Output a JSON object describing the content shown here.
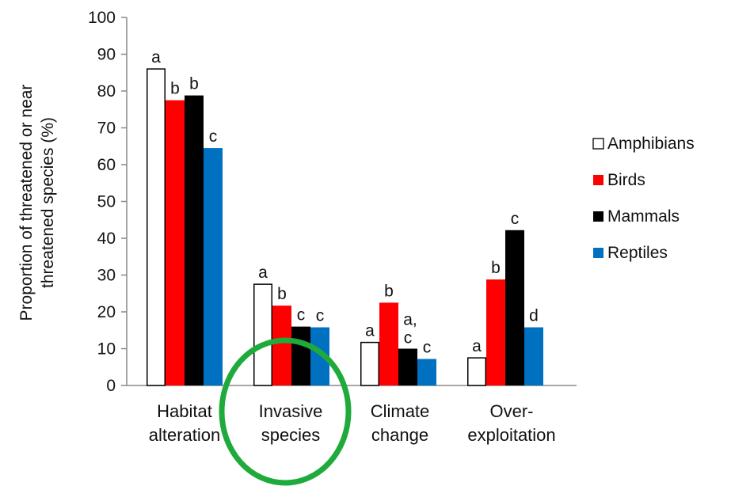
{
  "chart_data": {
    "type": "bar",
    "ylabel_lines": [
      "Proportion of threatened or near",
      "threatened species (%)"
    ],
    "xlabel": "",
    "ylim": [
      0,
      100
    ],
    "y_ticks": [
      "0",
      "10",
      "20",
      "30",
      "40",
      "50",
      "60",
      "70",
      "80",
      "90",
      "100"
    ],
    "categories": [
      {
        "lines": [
          "Habitat",
          "alteration"
        ]
      },
      {
        "lines": [
          "Invasive",
          "species"
        ]
      },
      {
        "lines": [
          "Climate",
          "change"
        ]
      },
      {
        "lines": [
          "Over-",
          "exploitation"
        ]
      }
    ],
    "series": [
      {
        "name": "Amphibians",
        "color": "#ffffff",
        "stroke": "#000000",
        "values": [
          86,
          27.5,
          11.7,
          7.5
        ],
        "labels": [
          "a",
          "a",
          "a",
          "a"
        ]
      },
      {
        "name": "Birds",
        "color": "#ff0000",
        "stroke": "#ff0000",
        "values": [
          77.5,
          21.7,
          22.5,
          28.8
        ],
        "labels": [
          "b",
          "b",
          "b",
          "b"
        ]
      },
      {
        "name": "Mammals",
        "color": "#000000",
        "stroke": "#000000",
        "values": [
          78.8,
          16,
          10,
          42.2
        ],
        "labels": [
          "b",
          "c",
          "a,\nc",
          "c"
        ]
      },
      {
        "name": "Reptiles",
        "color": "#0070c0",
        "stroke": "#0070c0",
        "values": [
          64.5,
          15.8,
          7.2,
          15.8
        ],
        "labels": [
          "c",
          "c",
          "c",
          "d"
        ]
      }
    ],
    "legend_position": "right",
    "grid": false
  },
  "annotation": {
    "shape": "ellipse",
    "color": "#1faa3c",
    "target": "Invasive species"
  }
}
